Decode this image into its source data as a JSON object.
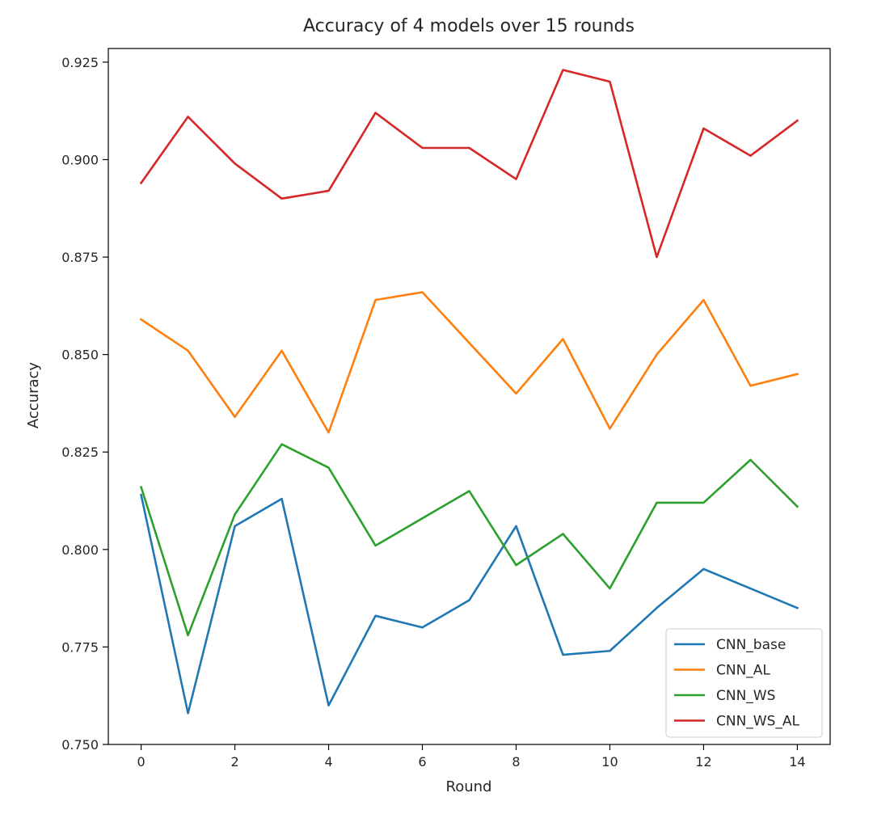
{
  "chart_data": {
    "type": "line",
    "title": "Accuracy of 4 models over 15 rounds",
    "xlabel": "Round",
    "ylabel": "Accuracy",
    "x": [
      0,
      1,
      2,
      3,
      4,
      5,
      6,
      7,
      8,
      9,
      10,
      11,
      12,
      13,
      14
    ],
    "xlim": [
      -0.7,
      14.7
    ],
    "ylim": [
      0.75,
      0.9285
    ],
    "xticks": [
      0,
      2,
      4,
      6,
      8,
      10,
      12,
      14
    ],
    "xtick_labels": [
      "0",
      "2",
      "4",
      "6",
      "8",
      "10",
      "12",
      "14"
    ],
    "yticks": [
      0.75,
      0.775,
      0.8,
      0.825,
      0.85,
      0.875,
      0.9,
      0.925
    ],
    "ytick_labels": [
      "0.750",
      "0.775",
      "0.800",
      "0.825",
      "0.850",
      "0.875",
      "0.900",
      "0.925"
    ],
    "grid": false,
    "legend_position": "bottom-right",
    "series": [
      {
        "name": "CNN_base",
        "color": "#1f77b4",
        "values": [
          0.814,
          0.758,
          0.806,
          0.813,
          0.76,
          0.783,
          0.78,
          0.787,
          0.806,
          0.773,
          0.774,
          0.785,
          0.795,
          0.79,
          0.785
        ]
      },
      {
        "name": "CNN_AL",
        "color": "#ff7f0e",
        "values": [
          0.859,
          0.851,
          0.834,
          0.851,
          0.83,
          0.864,
          0.866,
          0.853,
          0.84,
          0.854,
          0.831,
          0.85,
          0.864,
          0.842,
          0.845
        ]
      },
      {
        "name": "CNN_WS",
        "color": "#2ca02c",
        "values": [
          0.816,
          0.778,
          0.809,
          0.827,
          0.821,
          0.801,
          0.808,
          0.815,
          0.796,
          0.804,
          0.79,
          0.812,
          0.812,
          0.823,
          0.811
        ]
      },
      {
        "name": "CNN_WS_AL",
        "color": "#d62728",
        "values": [
          0.894,
          0.911,
          0.899,
          0.89,
          0.892,
          0.912,
          0.903,
          0.903,
          0.895,
          0.923,
          0.92,
          0.875,
          0.908,
          0.901,
          0.91
        ]
      }
    ]
  }
}
